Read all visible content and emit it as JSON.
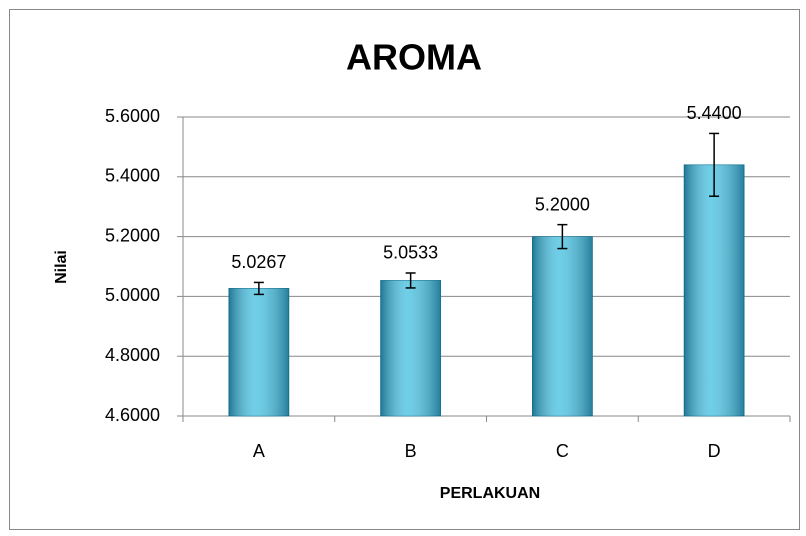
{
  "chart_data": {
    "type": "bar",
    "title": "AROMA",
    "x_label": "PERLAKUAN",
    "y_label": "Nilai",
    "categories": [
      "A",
      "B",
      "C",
      "D"
    ],
    "values": [
      5.0267,
      5.0533,
      5.2,
      5.44
    ],
    "value_labels": [
      "5.0267",
      "5.0533",
      "5.2000",
      "5.4400"
    ],
    "errors": [
      0.02,
      0.025,
      0.04,
      0.105
    ],
    "color": "#4bc3e2",
    "ylim": [
      4.6,
      5.6
    ],
    "yticks": [
      {
        "value": 4.6,
        "label": "4.6000"
      },
      {
        "value": 4.8,
        "label": "4.8000"
      },
      {
        "value": 5.0,
        "label": "5.0000"
      },
      {
        "value": 5.2,
        "label": "5.2000"
      },
      {
        "value": 5.4,
        "label": "5.4000"
      },
      {
        "value": 5.6,
        "label": "5.6000"
      }
    ],
    "grid": true
  }
}
